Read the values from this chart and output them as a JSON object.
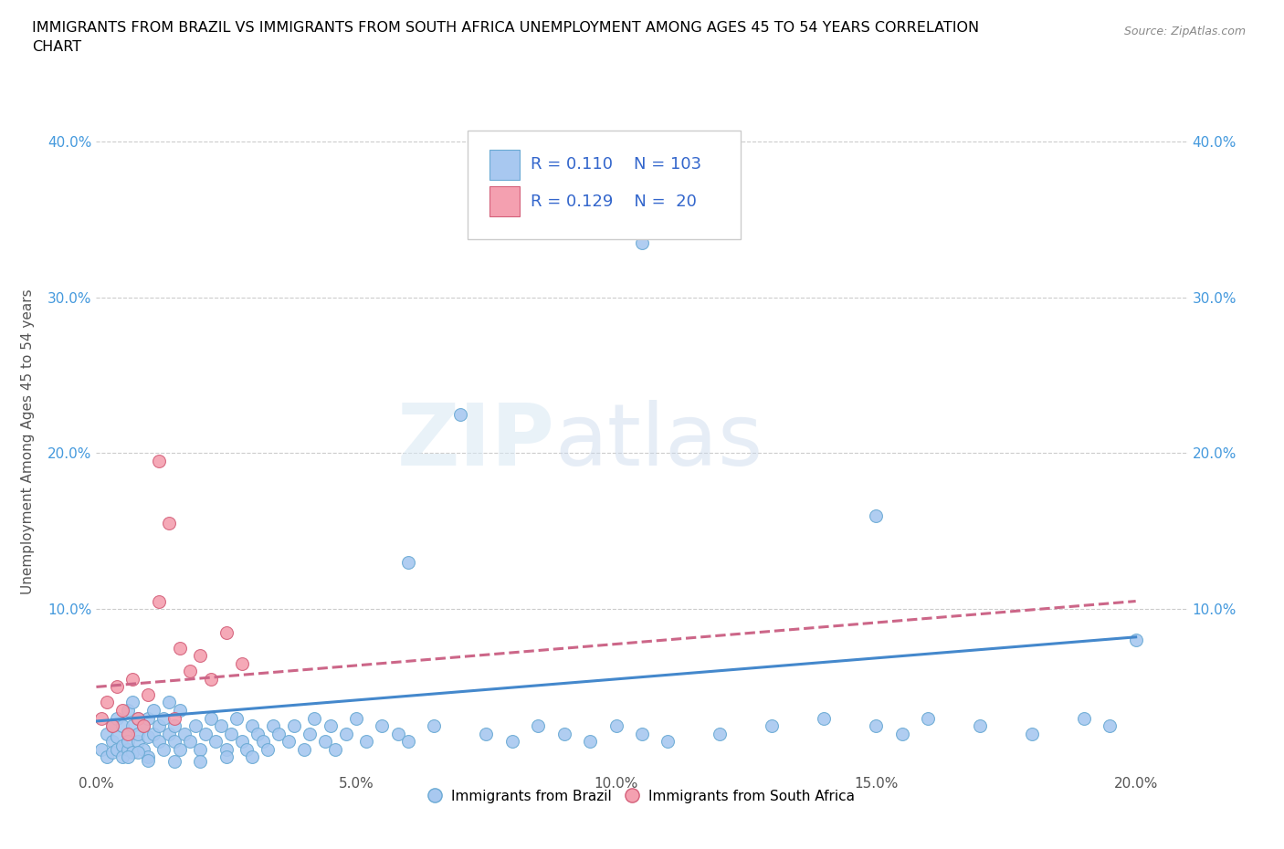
{
  "title": "IMMIGRANTS FROM BRAZIL VS IMMIGRANTS FROM SOUTH AFRICA UNEMPLOYMENT AMONG AGES 45 TO 54 YEARS CORRELATION\nCHART",
  "source": "Source: ZipAtlas.com",
  "ylabel": "Unemployment Among Ages 45 to 54 years",
  "brazil_R": 0.11,
  "brazil_N": 103,
  "sa_R": 0.129,
  "sa_N": 20,
  "brazil_color": "#a8c8f0",
  "brazil_edge": "#6aaad4",
  "sa_color": "#f4a0b0",
  "sa_edge": "#d4607a",
  "brazil_line_color": "#4488cc",
  "sa_line_color": "#cc6688",
  "xlim": [
    0.0,
    0.21
  ],
  "ylim": [
    -0.005,
    0.42
  ],
  "background_color": "#ffffff",
  "grid_color": "#cccccc",
  "brazil_line_x0": 0.0,
  "brazil_line_y0": 0.028,
  "brazil_line_x1": 0.2,
  "brazil_line_y1": 0.082,
  "sa_line_x0": 0.0,
  "sa_line_y0": 0.05,
  "sa_line_x1": 0.2,
  "sa_line_y1": 0.105,
  "brazil_scatter_x": [
    0.001,
    0.002,
    0.002,
    0.003,
    0.003,
    0.003,
    0.004,
    0.004,
    0.004,
    0.005,
    0.005,
    0.005,
    0.006,
    0.006,
    0.006,
    0.006,
    0.007,
    0.007,
    0.007,
    0.008,
    0.008,
    0.008,
    0.009,
    0.009,
    0.01,
    0.01,
    0.01,
    0.011,
    0.011,
    0.012,
    0.012,
    0.013,
    0.013,
    0.014,
    0.014,
    0.015,
    0.015,
    0.016,
    0.016,
    0.017,
    0.018,
    0.019,
    0.02,
    0.021,
    0.022,
    0.023,
    0.024,
    0.025,
    0.026,
    0.027,
    0.028,
    0.029,
    0.03,
    0.031,
    0.032,
    0.033,
    0.034,
    0.035,
    0.037,
    0.038,
    0.04,
    0.041,
    0.042,
    0.044,
    0.045,
    0.046,
    0.048,
    0.05,
    0.052,
    0.055,
    0.058,
    0.06,
    0.065,
    0.07,
    0.075,
    0.08,
    0.085,
    0.09,
    0.095,
    0.1,
    0.105,
    0.11,
    0.12,
    0.13,
    0.14,
    0.15,
    0.155,
    0.16,
    0.17,
    0.18,
    0.19,
    0.195,
    0.2,
    0.105,
    0.15,
    0.06,
    0.025,
    0.03,
    0.015,
    0.02,
    0.01,
    0.008,
    0.006
  ],
  "brazil_scatter_y": [
    0.01,
    0.005,
    0.02,
    0.015,
    0.025,
    0.008,
    0.018,
    0.03,
    0.01,
    0.012,
    0.025,
    0.005,
    0.02,
    0.035,
    0.01,
    0.015,
    0.008,
    0.025,
    0.04,
    0.015,
    0.02,
    0.03,
    0.01,
    0.025,
    0.018,
    0.03,
    0.005,
    0.02,
    0.035,
    0.015,
    0.025,
    0.01,
    0.03,
    0.02,
    0.04,
    0.015,
    0.025,
    0.01,
    0.035,
    0.02,
    0.015,
    0.025,
    0.01,
    0.02,
    0.03,
    0.015,
    0.025,
    0.01,
    0.02,
    0.03,
    0.015,
    0.01,
    0.025,
    0.02,
    0.015,
    0.01,
    0.025,
    0.02,
    0.015,
    0.025,
    0.01,
    0.02,
    0.03,
    0.015,
    0.025,
    0.01,
    0.02,
    0.03,
    0.015,
    0.025,
    0.02,
    0.015,
    0.025,
    0.225,
    0.02,
    0.015,
    0.025,
    0.02,
    0.015,
    0.025,
    0.02,
    0.015,
    0.02,
    0.025,
    0.03,
    0.025,
    0.02,
    0.03,
    0.025,
    0.02,
    0.03,
    0.025,
    0.08,
    0.335,
    0.16,
    0.13,
    0.005,
    0.005,
    0.002,
    0.002,
    0.003,
    0.008,
    0.005
  ],
  "sa_scatter_x": [
    0.001,
    0.002,
    0.003,
    0.004,
    0.005,
    0.006,
    0.007,
    0.008,
    0.009,
    0.01,
    0.012,
    0.014,
    0.016,
    0.018,
    0.02,
    0.022,
    0.025,
    0.028,
    0.012,
    0.015
  ],
  "sa_scatter_y": [
    0.03,
    0.04,
    0.025,
    0.05,
    0.035,
    0.02,
    0.055,
    0.03,
    0.025,
    0.045,
    0.195,
    0.155,
    0.075,
    0.06,
    0.07,
    0.055,
    0.085,
    0.065,
    0.105,
    0.03
  ]
}
